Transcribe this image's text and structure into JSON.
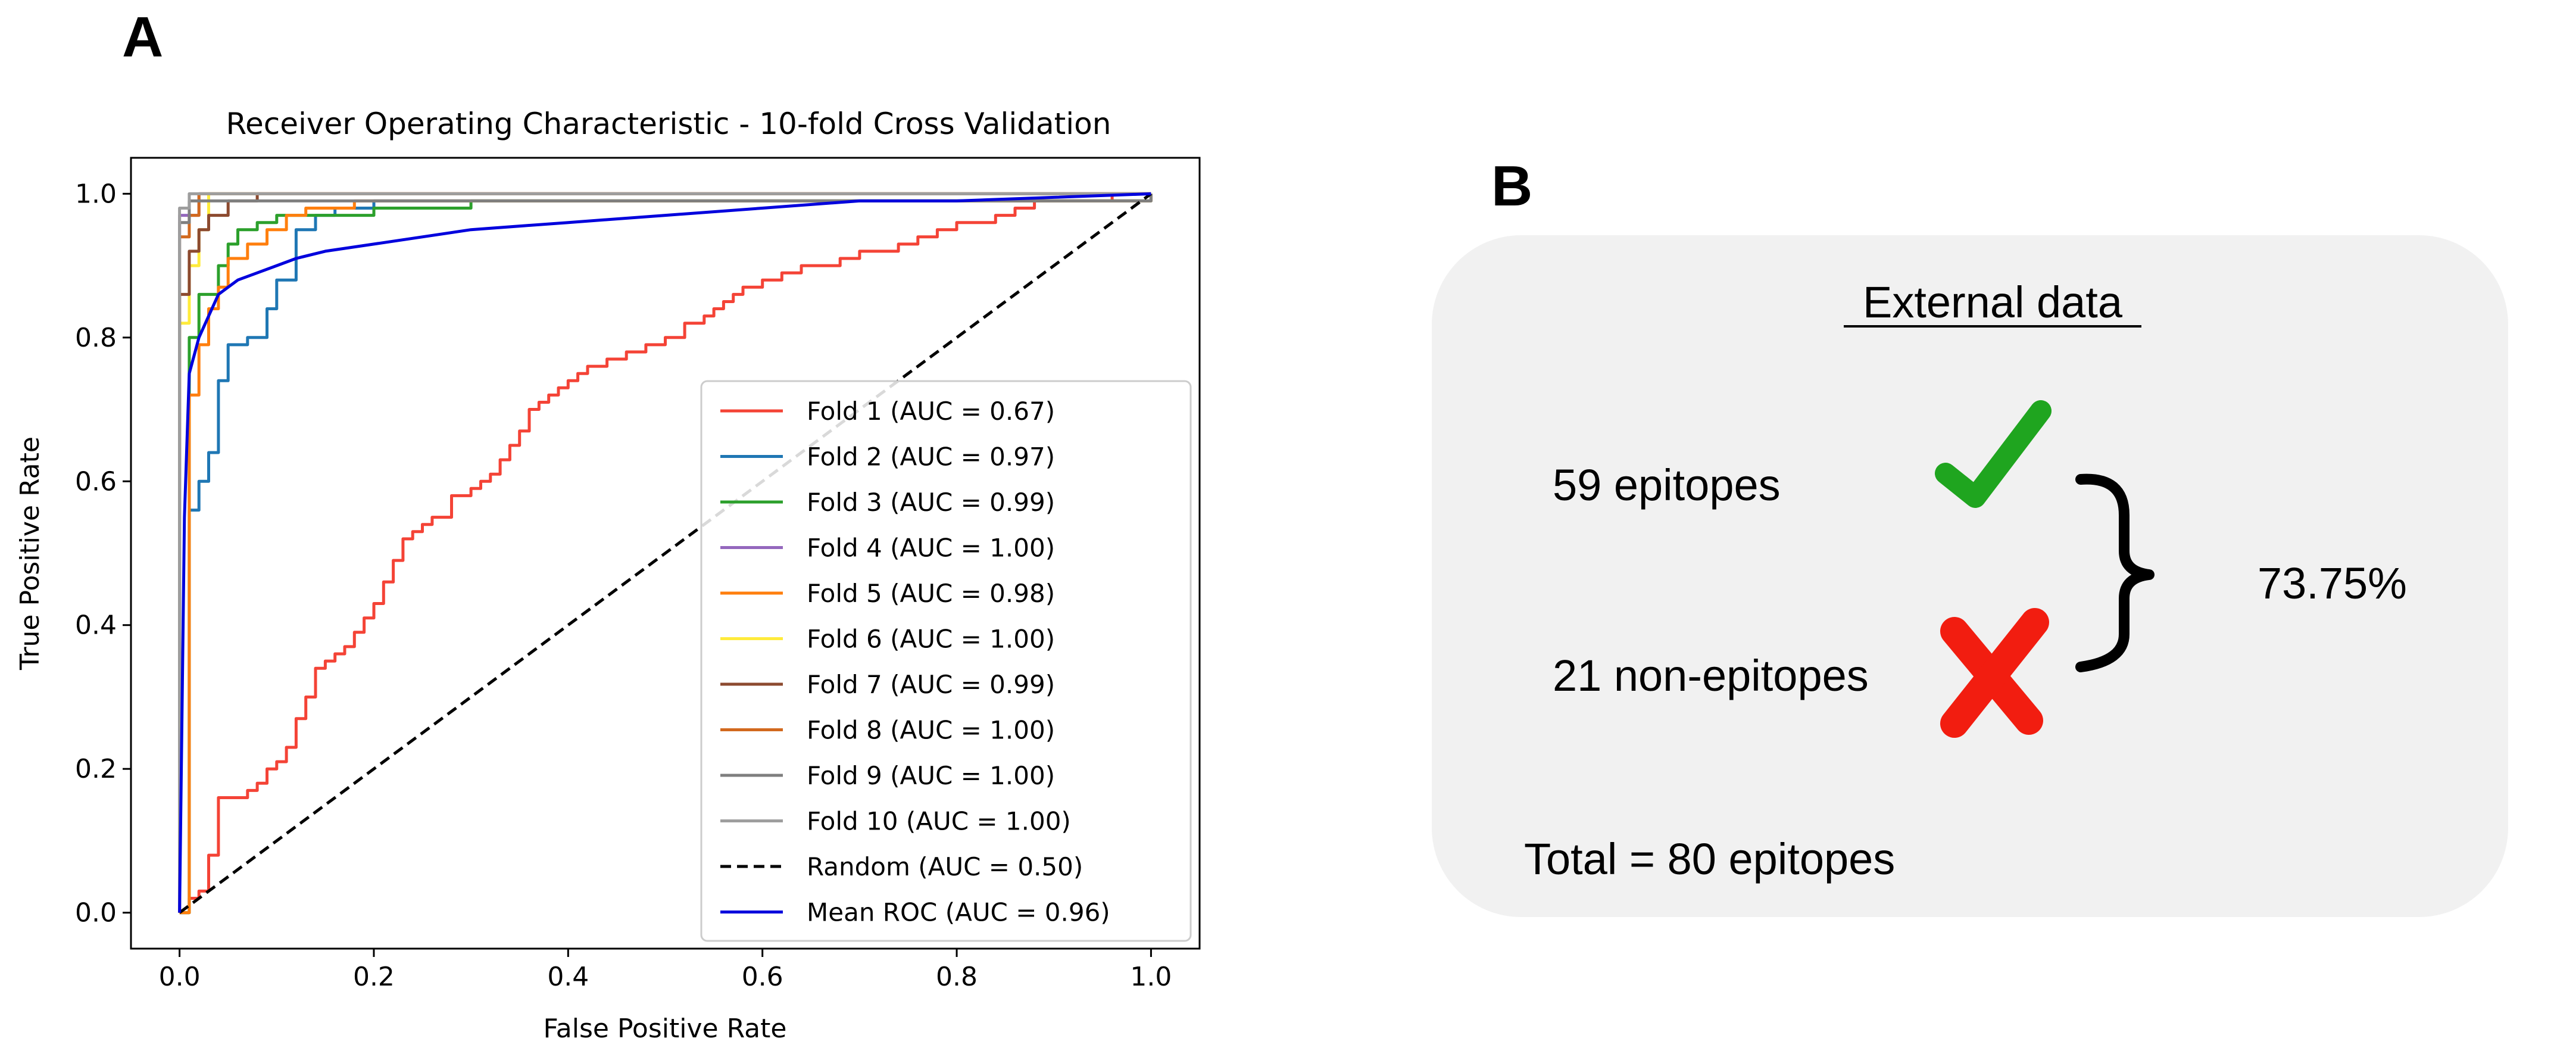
{
  "panels": {
    "a_label": "A",
    "b_label": "B"
  },
  "chart_data": {
    "type": "line",
    "title": "Receiver Operating Characteristic - 10-fold Cross Validation",
    "xlabel": "False Positive Rate",
    "ylabel": "True Positive Rate",
    "xlim": [
      -0.05,
      1.05
    ],
    "ylim": [
      -0.05,
      1.05
    ],
    "xticks": [
      0.0,
      0.2,
      0.4,
      0.6,
      0.8,
      1.0
    ],
    "yticks": [
      0.0,
      0.2,
      0.4,
      0.6,
      0.8,
      1.0
    ],
    "xtick_labels": [
      "0.0",
      "0.2",
      "0.4",
      "0.6",
      "0.8",
      "1.0"
    ],
    "ytick_labels": [
      "0.0",
      "0.2",
      "0.4",
      "0.6",
      "0.8",
      "1.0"
    ],
    "grid": false,
    "legend_position": "lower-right",
    "series": [
      {
        "name": "Fold 1 (AUC = 0.67)",
        "color": "#f44336",
        "dash": "solid",
        "step": true,
        "x": [
          0,
          0.01,
          0.02,
          0.03,
          0.03,
          0.04,
          0.04,
          0.07,
          0.08,
          0.09,
          0.1,
          0.11,
          0.12,
          0.13,
          0.14,
          0.15,
          0.16,
          0.17,
          0.18,
          0.19,
          0.2,
          0.21,
          0.22,
          0.23,
          0.24,
          0.25,
          0.26,
          0.28,
          0.3,
          0.31,
          0.32,
          0.33,
          0.34,
          0.35,
          0.36,
          0.37,
          0.38,
          0.39,
          0.4,
          0.41,
          0.42,
          0.44,
          0.46,
          0.48,
          0.5,
          0.52,
          0.54,
          0.55,
          0.56,
          0.57,
          0.58,
          0.6,
          0.62,
          0.64,
          0.66,
          0.68,
          0.7,
          0.72,
          0.74,
          0.76,
          0.78,
          0.8,
          0.82,
          0.84,
          0.86,
          0.88,
          0.9,
          0.92,
          0.94,
          0.96,
          1.0
        ],
        "y": [
          0,
          0.02,
          0.03,
          0.05,
          0.08,
          0.1,
          0.16,
          0.17,
          0.18,
          0.2,
          0.21,
          0.23,
          0.27,
          0.3,
          0.34,
          0.35,
          0.36,
          0.37,
          0.39,
          0.41,
          0.43,
          0.46,
          0.49,
          0.52,
          0.53,
          0.54,
          0.55,
          0.58,
          0.59,
          0.6,
          0.61,
          0.63,
          0.65,
          0.67,
          0.7,
          0.71,
          0.72,
          0.73,
          0.74,
          0.75,
          0.76,
          0.77,
          0.78,
          0.79,
          0.8,
          0.82,
          0.83,
          0.84,
          0.85,
          0.86,
          0.87,
          0.88,
          0.89,
          0.9,
          0.9,
          0.91,
          0.92,
          0.92,
          0.93,
          0.94,
          0.95,
          0.96,
          0.96,
          0.97,
          0.98,
          0.99,
          0.99,
          0.99,
          0.99,
          1.0,
          1.0
        ]
      },
      {
        "name": "Fold 2 (AUC = 0.97)",
        "color": "#1f77b4",
        "dash": "solid",
        "step": true,
        "x": [
          0,
          0.01,
          0.01,
          0.02,
          0.03,
          0.04,
          0.05,
          0.07,
          0.08,
          0.09,
          0.1,
          0.12,
          0.14,
          0.16,
          0.2,
          1.0
        ],
        "y": [
          0,
          0.5,
          0.56,
          0.6,
          0.64,
          0.74,
          0.79,
          0.8,
          0.8,
          0.84,
          0.88,
          0.95,
          0.97,
          0.98,
          0.99,
          1.0
        ]
      },
      {
        "name": "Fold 3 (AUC = 0.99)",
        "color": "#2ca02c",
        "dash": "solid",
        "step": true,
        "x": [
          0,
          0.01,
          0.02,
          0.04,
          0.05,
          0.06,
          0.08,
          0.1,
          0.2,
          0.3,
          0.44,
          1.0
        ],
        "y": [
          0,
          0.8,
          0.86,
          0.9,
          0.93,
          0.95,
          0.96,
          0.97,
          0.98,
          0.99,
          0.99,
          1.0
        ]
      },
      {
        "name": "Fold 4 (AUC = 1.00)",
        "color": "#9467bd",
        "dash": "solid",
        "step": true,
        "x": [
          0,
          0.0,
          0.02,
          1.0
        ],
        "y": [
          0,
          0.97,
          1.0,
          1.0
        ]
      },
      {
        "name": "Fold 5 (AUC = 0.98)",
        "color": "#ff7f0e",
        "dash": "solid",
        "step": true,
        "x": [
          0,
          0.01,
          0.02,
          0.03,
          0.04,
          0.05,
          0.07,
          0.09,
          0.11,
          0.13,
          0.18,
          0.27,
          1.0
        ],
        "y": [
          0,
          0.72,
          0.79,
          0.84,
          0.87,
          0.91,
          0.93,
          0.95,
          0.97,
          0.98,
          0.99,
          0.99,
          1.0
        ]
      },
      {
        "name": "Fold 6 (AUC = 1.00)",
        "color": "#ffeb3b",
        "dash": "solid",
        "step": true,
        "x": [
          0,
          0.0,
          0.01,
          0.02,
          0.03,
          0.05,
          1.0
        ],
        "y": [
          0,
          0.82,
          0.9,
          0.95,
          1.0,
          1.0,
          1.0
        ]
      },
      {
        "name": "Fold 7 (AUC = 0.99)",
        "color": "#8c4a2f",
        "dash": "solid",
        "step": true,
        "x": [
          0,
          0.0,
          0.01,
          0.02,
          0.03,
          0.05,
          0.08,
          1.0
        ],
        "y": [
          0,
          0.86,
          0.92,
          0.95,
          0.97,
          0.99,
          1.0,
          1.0
        ]
      },
      {
        "name": "Fold 8 (AUC = 1.00)",
        "color": "#d2691e",
        "dash": "solid",
        "step": true,
        "x": [
          0,
          0.0,
          0.01,
          0.02,
          1.0
        ],
        "y": [
          0,
          0.94,
          0.97,
          1.0,
          1.0
        ]
      },
      {
        "name": "Fold 9 (AUC = 1.00)",
        "color": "#7f7f7f",
        "dash": "solid",
        "step": true,
        "x": [
          0,
          0.0,
          0.01,
          1.0
        ],
        "y": [
          0,
          0.96,
          0.99,
          1.0
        ]
      },
      {
        "name": "Fold 10 (AUC = 1.00)",
        "color": "#9e9e9e",
        "dash": "solid",
        "step": true,
        "x": [
          0,
          0.0,
          0.01,
          1.0
        ],
        "y": [
          0,
          0.98,
          1.0,
          1.0
        ]
      },
      {
        "name": "Random (AUC = 0.50)",
        "color": "#000000",
        "dash": "dashed",
        "step": false,
        "x": [
          0,
          1
        ],
        "y": [
          0,
          1
        ]
      },
      {
        "name": "Mean ROC (AUC = 0.96)",
        "color": "#0000dd",
        "dash": "solid",
        "step": false,
        "x": [
          0,
          0.005,
          0.01,
          0.02,
          0.03,
          0.04,
          0.05,
          0.06,
          0.08,
          0.1,
          0.12,
          0.15,
          0.2,
          0.25,
          0.3,
          0.4,
          0.5,
          0.6,
          0.7,
          0.8,
          0.9,
          1.0
        ],
        "y": [
          0,
          0.55,
          0.75,
          0.8,
          0.83,
          0.86,
          0.87,
          0.88,
          0.89,
          0.9,
          0.91,
          0.92,
          0.93,
          0.94,
          0.95,
          0.96,
          0.97,
          0.98,
          0.99,
          0.99,
          0.995,
          1.0
        ]
      }
    ]
  },
  "summary": {
    "heading": "External data",
    "epitopes_text": "59 epitopes",
    "non_epitopes_text": "21 non-epitopes",
    "percentage": "73.75%",
    "total_text": "Total = 80 epitopes",
    "check_color": "#1fa51f",
    "cross_color": "#f21d10",
    "card_color": "#f1f1f1"
  }
}
